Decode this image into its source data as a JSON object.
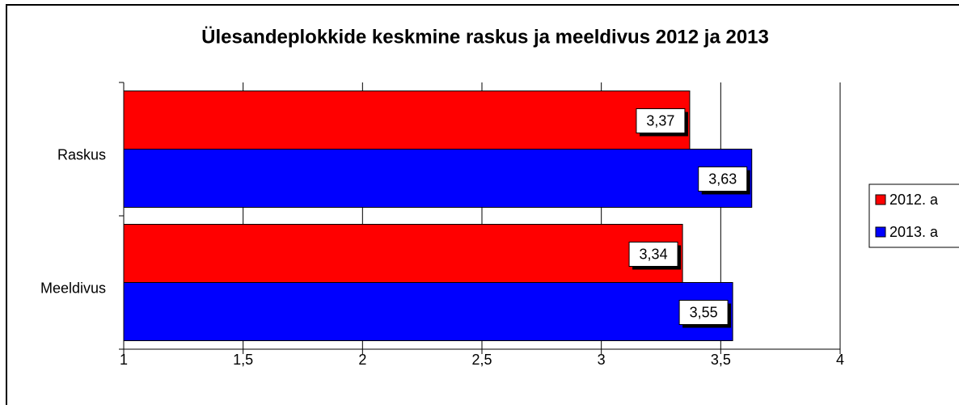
{
  "chart_data": {
    "type": "bar",
    "orientation": "horizontal",
    "title": "Ülesandeplokkide keskmine raskus ja meeldivus 2012 ja 2013",
    "categories": [
      "Raskus",
      "Meeldivus"
    ],
    "series": [
      {
        "name": "2012. a",
        "color": "#ff0000",
        "values": [
          3.37,
          3.34
        ],
        "value_labels": [
          "3,37",
          "3,34"
        ]
      },
      {
        "name": "2013. a",
        "color": "#0000ff",
        "values": [
          3.63,
          3.55
        ],
        "value_labels": [
          "3,63",
          "3,55"
        ]
      }
    ],
    "xlim": [
      1,
      4
    ],
    "xticks": [
      1,
      {
        "value": 1.5,
        "label": "1,5"
      },
      2,
      {
        "value": 2.5,
        "label": "2,5"
      },
      3,
      {
        "value": 3.5,
        "label": "3,5"
      },
      4
    ],
    "grid": true,
    "legend": "right"
  }
}
